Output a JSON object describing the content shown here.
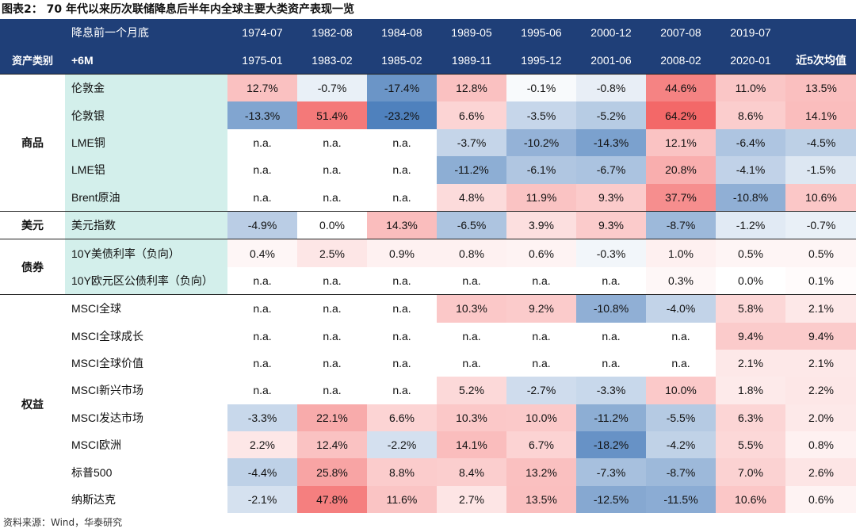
{
  "title": "图表2：  70 年代以来历次联储降息后半年内全球主要大类资产表现一览",
  "header": {
    "row1_label": "降息前一个月底",
    "row2_class": "资产类别",
    "row2_label": "+6M",
    "start_dates": [
      "1974-07",
      "1982-08",
      "1984-08",
      "1989-05",
      "1995-06",
      "2000-12",
      "2007-08",
      "2019-07",
      ""
    ],
    "end_dates": [
      "1975-01",
      "1983-02",
      "1985-02",
      "1989-11",
      "1995-12",
      "2001-06",
      "2008-02",
      "2020-01",
      "近5次均值"
    ]
  },
  "groups": [
    {
      "category": "商品",
      "rows": [
        {
          "asset": "伦敦金",
          "values": [
            "12.7%",
            "-0.7%",
            "-17.4%",
            "12.8%",
            "-0.1%",
            "-0.8%",
            "44.6%",
            "11.0%",
            "13.5%"
          ]
        },
        {
          "asset": "伦敦银",
          "values": [
            "-13.3%",
            "51.4%",
            "-23.2%",
            "6.6%",
            "-3.5%",
            "-5.2%",
            "64.2%",
            "8.6%",
            "14.1%"
          ]
        },
        {
          "asset": "LME铜",
          "values": [
            "n.a.",
            "n.a.",
            "n.a.",
            "-3.7%",
            "-10.2%",
            "-14.3%",
            "12.1%",
            "-6.4%",
            "-4.5%"
          ]
        },
        {
          "asset": "LME铝",
          "values": [
            "n.a.",
            "n.a.",
            "n.a.",
            "-11.2%",
            "-6.1%",
            "-6.7%",
            "20.8%",
            "-4.1%",
            "-1.5%"
          ]
        },
        {
          "asset": "Brent原油",
          "values": [
            "n.a.",
            "n.a.",
            "n.a.",
            "4.8%",
            "11.9%",
            "9.3%",
            "37.7%",
            "-10.8%",
            "10.6%"
          ]
        }
      ]
    },
    {
      "category": "美元",
      "rows": [
        {
          "asset": "美元指数",
          "values": [
            "-4.9%",
            "0.0%",
            "14.3%",
            "-6.5%",
            "3.9%",
            "9.3%",
            "-8.7%",
            "-1.2%",
            "-0.7%"
          ]
        }
      ]
    },
    {
      "category": "债券",
      "rows": [
        {
          "asset": "10Y美债利率（负向）",
          "values": [
            "0.4%",
            "2.5%",
            "0.9%",
            "0.8%",
            "0.6%",
            "-0.3%",
            "1.0%",
            "0.5%",
            "0.5%"
          ]
        },
        {
          "asset": "10Y欧元区公债利率（负向）",
          "values": [
            "n.a.",
            "n.a.",
            "n.a.",
            "n.a.",
            "n.a.",
            "n.a.",
            "0.3%",
            "0.0%",
            "0.1%"
          ]
        }
      ]
    },
    {
      "category": "权益",
      "rows": [
        {
          "asset": "MSCI全球",
          "values": [
            "n.a.",
            "n.a.",
            "n.a.",
            "10.3%",
            "9.2%",
            "-10.8%",
            "-4.0%",
            "5.8%",
            "2.1%"
          ]
        },
        {
          "asset": "MSCI全球成长",
          "values": [
            "n.a.",
            "n.a.",
            "n.a.",
            "n.a.",
            "n.a.",
            "n.a.",
            "n.a.",
            "9.4%",
            "9.4%"
          ]
        },
        {
          "asset": "MSCI全球价值",
          "values": [
            "n.a.",
            "n.a.",
            "n.a.",
            "n.a.",
            "n.a.",
            "n.a.",
            "n.a.",
            "2.1%",
            "2.1%"
          ]
        },
        {
          "asset": "MSCI新兴市场",
          "values": [
            "n.a.",
            "n.a.",
            "n.a.",
            "5.2%",
            "-2.7%",
            "-3.3%",
            "10.0%",
            "1.8%",
            "2.2%"
          ]
        },
        {
          "asset": "MSCI发达市场",
          "values": [
            "-3.3%",
            "22.1%",
            "6.6%",
            "10.3%",
            "10.0%",
            "-11.2%",
            "-5.5%",
            "6.3%",
            "2.0%"
          ]
        },
        {
          "asset": "MSCI欧洲",
          "values": [
            "2.2%",
            "12.4%",
            "-2.2%",
            "14.1%",
            "6.7%",
            "-18.2%",
            "-4.2%",
            "5.5%",
            "0.8%"
          ]
        },
        {
          "asset": "标普500",
          "values": [
            "-4.4%",
            "25.8%",
            "8.8%",
            "8.4%",
            "13.2%",
            "-7.3%",
            "-8.7%",
            "7.0%",
            "2.6%"
          ]
        },
        {
          "asset": "纳斯达克",
          "values": [
            "-2.1%",
            "47.8%",
            "11.6%",
            "2.7%",
            "13.5%",
            "-12.5%",
            "-11.5%",
            "10.6%",
            "0.6%"
          ]
        }
      ]
    }
  ],
  "source": "资料来源：Wind，华泰研究"
}
